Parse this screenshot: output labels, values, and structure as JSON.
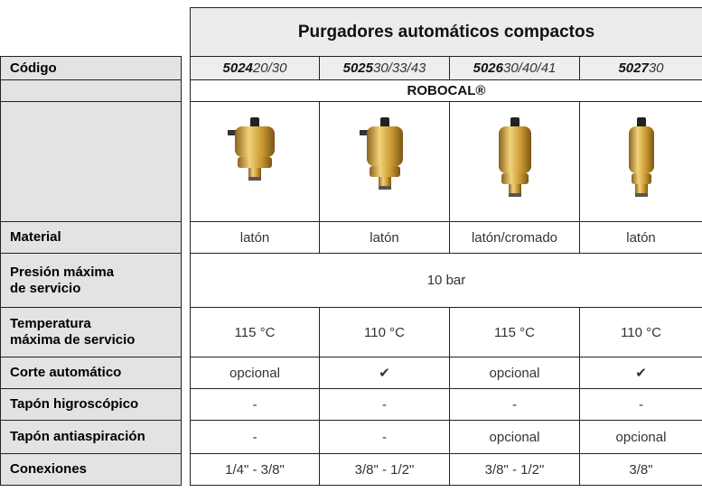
{
  "header": {
    "title": "Purgadores automáticos compactos"
  },
  "table": {
    "code_label": "Código",
    "codes": [
      {
        "bold": "5024",
        "rest": "20/30"
      },
      {
        "bold": "5025",
        "rest": "30/33/43"
      },
      {
        "bold": "5026",
        "rest": "30/40/41"
      },
      {
        "bold": "5027",
        "rest": "30"
      }
    ],
    "brand": "ROBOCAL®",
    "rows": [
      {
        "label": "Material",
        "cells": [
          "latón",
          "latón",
          "latón/cromado",
          "latón"
        ]
      },
      {
        "label": "Presión máxima\nde servicio",
        "cells": [
          "10 bar"
        ]
      },
      {
        "label": "Temperatura\nmáxima de servicio",
        "cells": [
          "115 °C",
          "110 °C",
          "115 °C",
          "110 °C"
        ]
      },
      {
        "label": "Corte automático",
        "cells": [
          "opcional",
          "✔",
          "opcional",
          "✔"
        ]
      },
      {
        "label": "Tapón higroscópico",
        "cells": [
          "-",
          "-",
          "-",
          "-"
        ]
      },
      {
        "label": "Tapón antiaspiración",
        "cells": [
          "-",
          "-",
          "opcional",
          "opcional"
        ]
      },
      {
        "label": "Conexiones",
        "cells": [
          "1/4\" - 3/8\"",
          "3/8\" - 1/2\"",
          "3/8\" - 1/2\"",
          "3/8\""
        ]
      }
    ]
  }
}
